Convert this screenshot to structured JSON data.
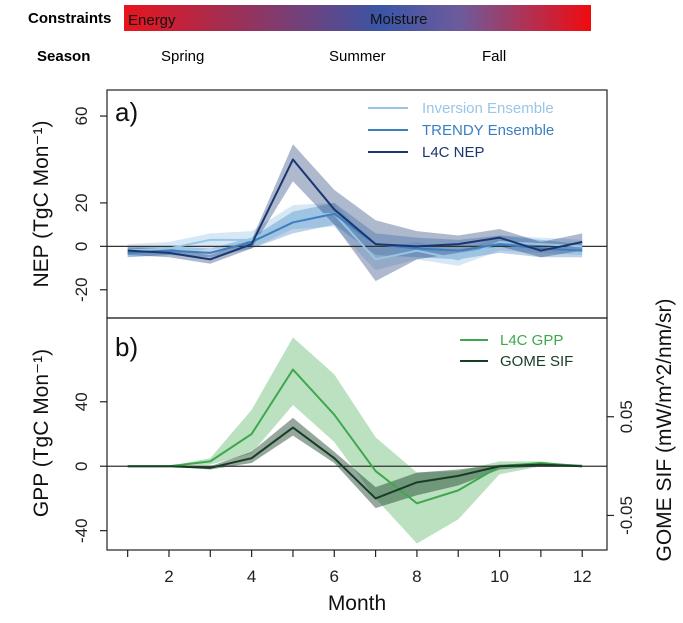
{
  "header": {
    "constraints_label": "Constraints",
    "energy_label": "Energy",
    "moisture_label": "Moisture",
    "season_label": "Season",
    "seasons": [
      "Spring",
      "Summer",
      "Fall"
    ],
    "gradient_colors": [
      "#e8141c",
      "#3b55a6",
      "#6d5b9c",
      "#f10a0f"
    ]
  },
  "chart_data": [
    {
      "type": "line",
      "panel_label": "a)",
      "ylabel": "NEP (TgC Mon⁻¹)",
      "ylim": [
        -33,
        72
      ],
      "yticks": [
        -20,
        0,
        20,
        60
      ],
      "xlim": [
        0.5,
        12.6
      ],
      "x": [
        1,
        2,
        3,
        4,
        5,
        6,
        7,
        8,
        9,
        10,
        11,
        12
      ],
      "legend_position": "top-right",
      "zero_line": true,
      "series": [
        {
          "name": "Inversion Ensemble",
          "color": "#99c6e7",
          "values": [
            -2,
            -1,
            3,
            3,
            14,
            15,
            -6,
            -2,
            -6,
            2,
            1,
            0
          ],
          "band_low": [
            -5,
            -4,
            -1,
            -1,
            8,
            9,
            -11,
            -6,
            -9,
            -2,
            -3,
            -4
          ],
          "band_high": [
            1,
            2,
            6,
            7,
            19,
            20,
            -1,
            2,
            -3,
            5,
            4,
            3
          ]
        },
        {
          "name": "TRENDY Ensemble",
          "color": "#3b7fc1",
          "values": [
            -3,
            -2,
            -3,
            2,
            11,
            15,
            1,
            -1,
            -2,
            1,
            -1,
            -2
          ],
          "band_low": [
            -5,
            -4,
            -5,
            -1,
            6,
            10,
            -4,
            -5,
            -6,
            -3,
            -5,
            -5
          ],
          "band_high": [
            -1,
            0,
            -1,
            4,
            16,
            20,
            6,
            4,
            3,
            5,
            3,
            1
          ]
        },
        {
          "name": "L4C NEP",
          "color": "#1a3770",
          "values": [
            -2,
            -3,
            -6,
            1,
            40,
            17,
            1,
            0,
            1,
            4,
            -2,
            2
          ],
          "band_low": [
            -4,
            -5,
            -8,
            -1,
            30,
            10,
            -16,
            -6,
            -3,
            0,
            -5,
            -2
          ],
          "band_high": [
            0,
            -1,
            -4,
            3,
            47,
            26,
            12,
            7,
            5,
            8,
            2,
            6
          ]
        }
      ]
    },
    {
      "type": "line",
      "panel_label": "b)",
      "ylabel": "GPP (TgC Mon⁻¹)",
      "ylabel_right": "GOME SIF (mW/m^2/nm/sr)",
      "ylim": [
        -52,
        92
      ],
      "yticks": [
        -40,
        0,
        40
      ],
      "right_ylim": [
        -0.085,
        0.15
      ],
      "right_yticks": [
        -0.05,
        0.05
      ],
      "xlim": [
        0.5,
        12.6
      ],
      "x": [
        1,
        2,
        3,
        4,
        5,
        6,
        7,
        8,
        9,
        10,
        11,
        12
      ],
      "xticks": [
        2,
        4,
        6,
        8,
        10,
        12
      ],
      "xlabel": "Month",
      "legend_position": "top-right",
      "zero_line": true,
      "series": [
        {
          "name": "L4C GPP",
          "axis": "left",
          "color": "#3fa84e",
          "values": [
            0,
            0,
            3,
            20,
            60,
            32,
            -3,
            -23,
            -15,
            0,
            2,
            0
          ],
          "band_low": [
            0,
            0,
            1,
            8,
            38,
            15,
            -20,
            -48,
            -33,
            -5,
            0,
            0
          ],
          "band_high": [
            0,
            0,
            5,
            35,
            80,
            57,
            18,
            -4,
            -3,
            3,
            3,
            0
          ]
        },
        {
          "name": "GOME SIF",
          "axis": "left",
          "color": "#173d26",
          "values": [
            0,
            0,
            -1,
            5,
            24,
            5,
            -20,
            -10,
            -6,
            0,
            1,
            0
          ],
          "band_low": [
            0,
            0,
            -2,
            2,
            19,
            2,
            -26,
            -18,
            -12,
            -2,
            0,
            0
          ],
          "band_high": [
            0,
            0,
            0,
            9,
            30,
            9,
            -13,
            -4,
            -2,
            1,
            2,
            1
          ]
        }
      ]
    }
  ]
}
